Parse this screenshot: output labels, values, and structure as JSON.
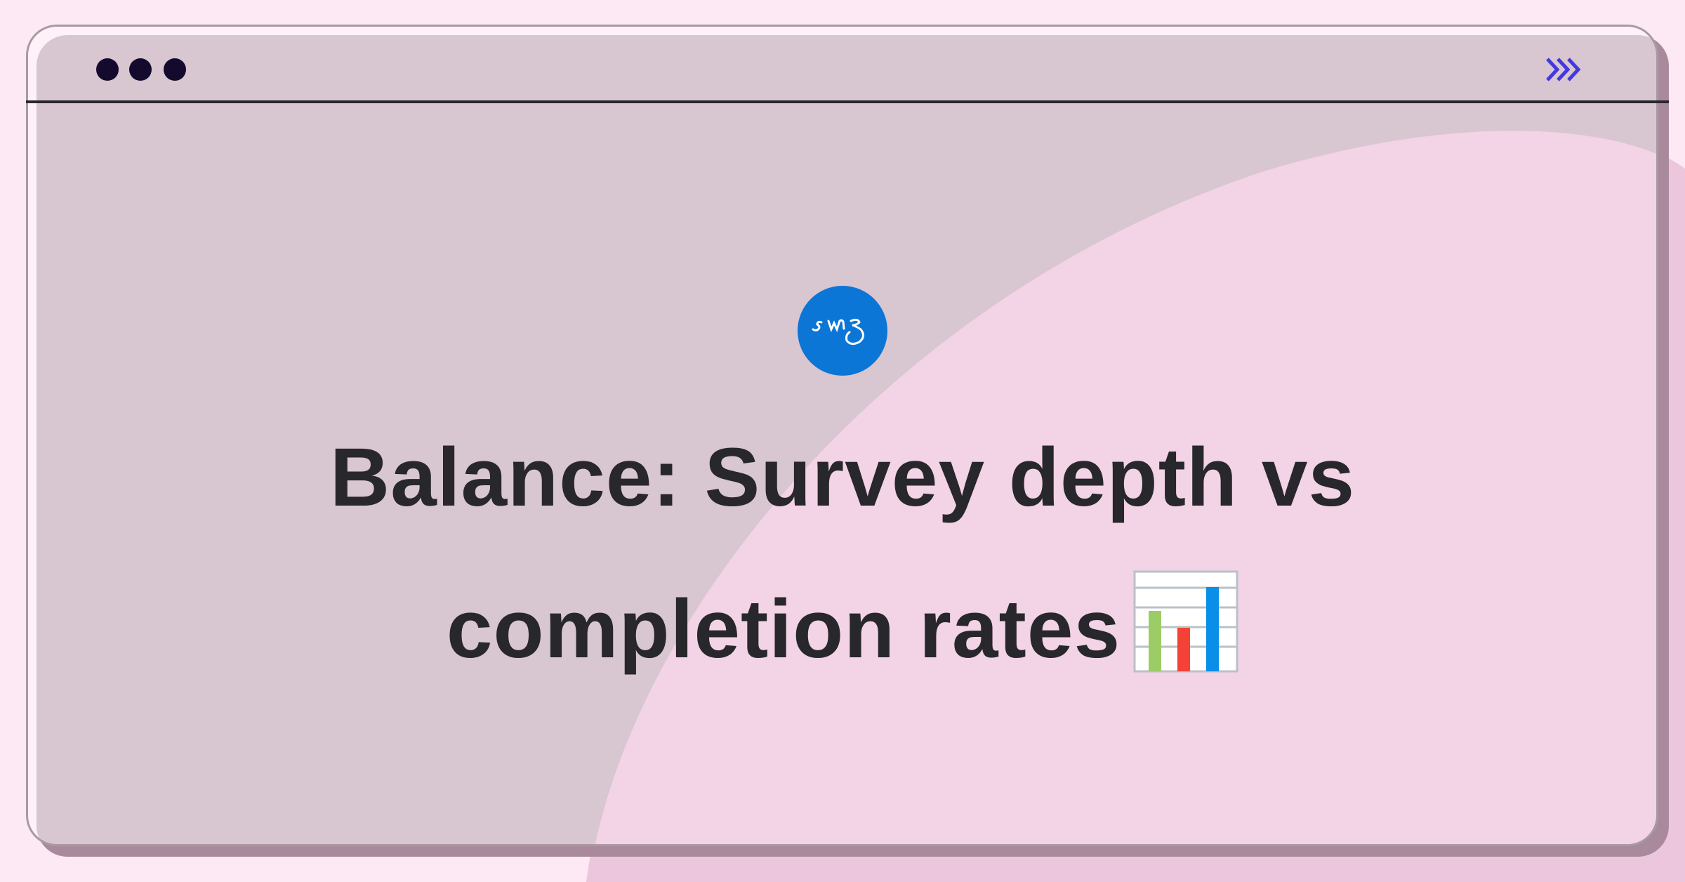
{
  "window": {
    "dots": 3,
    "menu_icon": "triple-chevron-right-icon",
    "accent_color": "#4338e0"
  },
  "logo": {
    "text": "smg",
    "color": "#0b76d6"
  },
  "title": {
    "line1": "Balance: Survey depth vs",
    "line2": "completion rates",
    "emoji": "bar-chart-emoji"
  },
  "colors": {
    "background": "#fde9f3",
    "blob": "#f3d3e6",
    "text": "#28272b"
  }
}
